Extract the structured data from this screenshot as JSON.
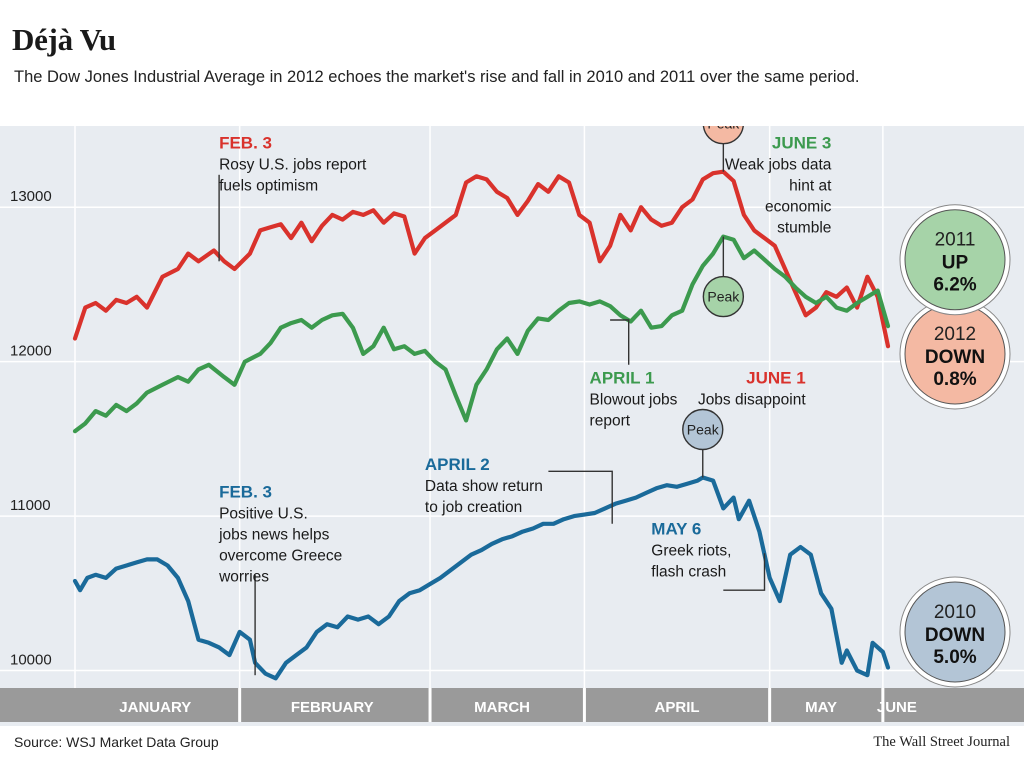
{
  "header": {
    "title": "Déjà Vu",
    "subtitle": "The Dow Jones Industrial Average in 2012 echoes the market's rise and fall in 2010 and 2011 over the same period."
  },
  "footer": {
    "source": "Source: WSJ Market Data Group",
    "credit": "The Wall Street Journal"
  },
  "chart_data": {
    "type": "line",
    "title": "Déjà Vu",
    "subtitle": "The Dow Jones Industrial Average in 2012 echoes the market's rise and fall in 2010 and 2011 over the same period.",
    "ylim": [
      9900,
      13500
    ],
    "y_ticks": [
      10000,
      11000,
      12000,
      13000
    ],
    "y_tick_labels": [
      "10000",
      "11000",
      "12000",
      "13000"
    ],
    "x_months": [
      "JANUARY",
      "FEBRUARY",
      "MARCH",
      "APRIL",
      "MAY",
      "JUNE"
    ],
    "grid": true,
    "series": [
      {
        "year": "2012",
        "color": "#d9322c",
        "badge": {
          "year": "2012",
          "direction": "DOWN",
          "change": "0.8%",
          "fill": "#f4b9a3"
        },
        "points": [
          [
            0.0,
            12150
          ],
          [
            0.1,
            12350
          ],
          [
            0.2,
            12380
          ],
          [
            0.3,
            12330
          ],
          [
            0.4,
            12400
          ],
          [
            0.5,
            12380
          ],
          [
            0.6,
            12420
          ],
          [
            0.7,
            12350
          ],
          [
            0.85,
            12550
          ],
          [
            1.0,
            12600
          ],
          [
            1.1,
            12700
          ],
          [
            1.2,
            12650
          ],
          [
            1.35,
            12720
          ],
          [
            1.45,
            12650
          ],
          [
            1.55,
            12600
          ],
          [
            1.7,
            12700
          ],
          [
            1.8,
            12850
          ],
          [
            1.9,
            12870
          ],
          [
            2.0,
            12890
          ],
          [
            2.1,
            12800
          ],
          [
            2.2,
            12900
          ],
          [
            2.3,
            12780
          ],
          [
            2.4,
            12880
          ],
          [
            2.5,
            12950
          ],
          [
            2.6,
            12920
          ],
          [
            2.7,
            12970
          ],
          [
            2.8,
            12950
          ],
          [
            2.9,
            12980
          ],
          [
            3.0,
            12900
          ],
          [
            3.1,
            12960
          ],
          [
            3.2,
            12940
          ],
          [
            3.3,
            12700
          ],
          [
            3.4,
            12800
          ],
          [
            3.5,
            12850
          ],
          [
            3.6,
            12900
          ],
          [
            3.7,
            12950
          ],
          [
            3.8,
            13160
          ],
          [
            3.9,
            13200
          ],
          [
            4.0,
            13180
          ],
          [
            4.1,
            13100
          ],
          [
            4.2,
            13060
          ],
          [
            4.3,
            12950
          ],
          [
            4.4,
            13040
          ],
          [
            4.5,
            13150
          ],
          [
            4.6,
            13100
          ],
          [
            4.7,
            13200
          ],
          [
            4.8,
            13160
          ],
          [
            4.9,
            12950
          ],
          [
            5.0,
            12900
          ],
          [
            5.1,
            12650
          ],
          [
            5.2,
            12750
          ],
          [
            5.3,
            12950
          ],
          [
            5.4,
            12850
          ],
          [
            5.5,
            13000
          ],
          [
            5.6,
            12920
          ],
          [
            5.7,
            12880
          ],
          [
            5.8,
            12900
          ],
          [
            5.9,
            13000
          ],
          [
            6.0,
            13050
          ],
          [
            6.1,
            13180
          ],
          [
            6.2,
            13220
          ],
          [
            6.3,
            13230
          ],
          [
            6.4,
            13170
          ],
          [
            6.5,
            12950
          ],
          [
            6.6,
            12850
          ],
          [
            6.7,
            12800
          ],
          [
            6.8,
            12750
          ],
          [
            6.9,
            12600
          ],
          [
            7.0,
            12450
          ],
          [
            7.1,
            12300
          ],
          [
            7.2,
            12350
          ],
          [
            7.3,
            12450
          ],
          [
            7.4,
            12420
          ],
          [
            7.5,
            12480
          ],
          [
            7.6,
            12350
          ],
          [
            7.7,
            12550
          ],
          [
            7.8,
            12420
          ],
          [
            7.9,
            12100
          ]
        ]
      },
      {
        "year": "2011",
        "color": "#3c9a4e",
        "badge": {
          "year": "2011",
          "direction": "UP",
          "change": "6.2%",
          "fill": "#a6d3a8"
        },
        "points": [
          [
            0.0,
            11550
          ],
          [
            0.1,
            11600
          ],
          [
            0.2,
            11680
          ],
          [
            0.3,
            11650
          ],
          [
            0.4,
            11720
          ],
          [
            0.5,
            11680
          ],
          [
            0.6,
            11730
          ],
          [
            0.7,
            11800
          ],
          [
            0.85,
            11850
          ],
          [
            1.0,
            11900
          ],
          [
            1.1,
            11870
          ],
          [
            1.2,
            11950
          ],
          [
            1.3,
            11980
          ],
          [
            1.45,
            11900
          ],
          [
            1.55,
            11850
          ],
          [
            1.65,
            12000
          ],
          [
            1.8,
            12050
          ],
          [
            1.9,
            12120
          ],
          [
            2.0,
            12220
          ],
          [
            2.1,
            12250
          ],
          [
            2.2,
            12270
          ],
          [
            2.3,
            12220
          ],
          [
            2.4,
            12270
          ],
          [
            2.5,
            12300
          ],
          [
            2.6,
            12310
          ],
          [
            2.7,
            12220
          ],
          [
            2.8,
            12050
          ],
          [
            2.9,
            12100
          ],
          [
            3.0,
            12220
          ],
          [
            3.1,
            12080
          ],
          [
            3.2,
            12100
          ],
          [
            3.3,
            12050
          ],
          [
            3.4,
            12070
          ],
          [
            3.5,
            12000
          ],
          [
            3.6,
            11950
          ],
          [
            3.7,
            11780
          ],
          [
            3.8,
            11620
          ],
          [
            3.9,
            11850
          ],
          [
            4.0,
            11950
          ],
          [
            4.1,
            12080
          ],
          [
            4.2,
            12150
          ],
          [
            4.3,
            12050
          ],
          [
            4.4,
            12200
          ],
          [
            4.5,
            12280
          ],
          [
            4.6,
            12270
          ],
          [
            4.7,
            12330
          ],
          [
            4.8,
            12380
          ],
          [
            4.9,
            12390
          ],
          [
            5.0,
            12370
          ],
          [
            5.1,
            12390
          ],
          [
            5.2,
            12360
          ],
          [
            5.3,
            12300
          ],
          [
            5.4,
            12260
          ],
          [
            5.5,
            12330
          ],
          [
            5.6,
            12220
          ],
          [
            5.7,
            12230
          ],
          [
            5.8,
            12300
          ],
          [
            5.9,
            12330
          ],
          [
            6.0,
            12500
          ],
          [
            6.1,
            12620
          ],
          [
            6.2,
            12700
          ],
          [
            6.3,
            12810
          ],
          [
            6.4,
            12790
          ],
          [
            6.5,
            12670
          ],
          [
            6.6,
            12720
          ],
          [
            6.7,
            12660
          ],
          [
            6.8,
            12600
          ],
          [
            6.9,
            12550
          ],
          [
            7.0,
            12480
          ],
          [
            7.1,
            12420
          ],
          [
            7.2,
            12380
          ],
          [
            7.3,
            12420
          ],
          [
            7.4,
            12350
          ],
          [
            7.5,
            12330
          ],
          [
            7.6,
            12380
          ],
          [
            7.7,
            12420
          ],
          [
            7.8,
            12460
          ],
          [
            7.9,
            12230
          ]
        ]
      },
      {
        "year": "2010",
        "color": "#1a6a9a",
        "badge": {
          "year": "2010",
          "direction": "DOWN",
          "change": "5.0%",
          "fill": "#b3c5d6"
        },
        "points": [
          [
            0.0,
            10580
          ],
          [
            0.05,
            10520
          ],
          [
            0.12,
            10600
          ],
          [
            0.2,
            10620
          ],
          [
            0.3,
            10600
          ],
          [
            0.4,
            10660
          ],
          [
            0.5,
            10680
          ],
          [
            0.6,
            10700
          ],
          [
            0.7,
            10720
          ],
          [
            0.8,
            10720
          ],
          [
            0.9,
            10680
          ],
          [
            1.0,
            10600
          ],
          [
            1.1,
            10450
          ],
          [
            1.2,
            10200
          ],
          [
            1.3,
            10180
          ],
          [
            1.4,
            10150
          ],
          [
            1.5,
            10100
          ],
          [
            1.6,
            10250
          ],
          [
            1.7,
            10200
          ],
          [
            1.75,
            10050
          ],
          [
            1.85,
            9980
          ],
          [
            1.95,
            9950
          ],
          [
            2.05,
            10050
          ],
          [
            2.15,
            10100
          ],
          [
            2.25,
            10150
          ],
          [
            2.35,
            10250
          ],
          [
            2.45,
            10300
          ],
          [
            2.55,
            10280
          ],
          [
            2.65,
            10350
          ],
          [
            2.75,
            10330
          ],
          [
            2.85,
            10350
          ],
          [
            2.95,
            10300
          ],
          [
            3.05,
            10350
          ],
          [
            3.15,
            10450
          ],
          [
            3.25,
            10500
          ],
          [
            3.35,
            10520
          ],
          [
            3.45,
            10560
          ],
          [
            3.55,
            10600
          ],
          [
            3.65,
            10650
          ],
          [
            3.75,
            10700
          ],
          [
            3.85,
            10750
          ],
          [
            3.95,
            10780
          ],
          [
            4.05,
            10820
          ],
          [
            4.15,
            10850
          ],
          [
            4.25,
            10870
          ],
          [
            4.35,
            10900
          ],
          [
            4.45,
            10920
          ],
          [
            4.55,
            10950
          ],
          [
            4.65,
            10950
          ],
          [
            4.75,
            10980
          ],
          [
            4.85,
            11000
          ],
          [
            4.95,
            11010
          ],
          [
            5.05,
            11020
          ],
          [
            5.15,
            11050
          ],
          [
            5.25,
            11080
          ],
          [
            5.35,
            11100
          ],
          [
            5.45,
            11120
          ],
          [
            5.55,
            11150
          ],
          [
            5.65,
            11180
          ],
          [
            5.75,
            11200
          ],
          [
            5.85,
            11190
          ],
          [
            5.95,
            11210
          ],
          [
            6.05,
            11230
          ],
          [
            6.1,
            11250
          ],
          [
            6.2,
            11230
          ],
          [
            6.3,
            11050
          ],
          [
            6.4,
            11120
          ],
          [
            6.45,
            10980
          ],
          [
            6.55,
            11100
          ],
          [
            6.65,
            10900
          ],
          [
            6.75,
            10600
          ],
          [
            6.85,
            10450
          ],
          [
            6.95,
            10750
          ],
          [
            7.05,
            10800
          ],
          [
            7.15,
            10750
          ],
          [
            7.25,
            10500
          ],
          [
            7.35,
            10400
          ],
          [
            7.45,
            10050
          ],
          [
            7.5,
            10130
          ],
          [
            7.6,
            10000
          ],
          [
            7.7,
            9970
          ],
          [
            7.75,
            10180
          ],
          [
            7.85,
            10120
          ],
          [
            7.9,
            10020
          ]
        ]
      }
    ],
    "peaks": [
      {
        "year": "2012",
        "label": "Peak",
        "x": 6.3,
        "value": 13230
      },
      {
        "year": "2011",
        "label": "Peak",
        "x": 6.3,
        "value": 12810
      },
      {
        "year": "2010",
        "label": "Peak",
        "x": 6.1,
        "value": 11250
      }
    ],
    "annotations": [
      {
        "series": "2012",
        "date": "FEB. 3",
        "text": [
          "Rosy U.S. jobs report",
          "fuels optimism"
        ],
        "x": 1.4,
        "value": 13380,
        "align": "left",
        "color": "#d9322c",
        "leader": [
          [
            1.4,
            13210
          ],
          [
            1.4,
            12650
          ]
        ]
      },
      {
        "series": "2011",
        "date": "JUNE 3",
        "text": [
          "Weak jobs data",
          "hint at",
          "economic",
          "stumble"
        ],
        "x": 7.35,
        "value": 13380,
        "align": "right",
        "color": "#3c9a4e",
        "leader": []
      },
      {
        "series": "2011",
        "date": "APRIL 1",
        "text": [
          "Blowout jobs",
          "report"
        ],
        "x": 5.0,
        "value": 11860,
        "align": "left",
        "color": "#3c9a4e",
        "leader": [
          [
            5.38,
            11980
          ],
          [
            5.38,
            12270
          ],
          [
            5.2,
            12270
          ]
        ]
      },
      {
        "series": "2012",
        "date": "JUNE 1",
        "text": [
          "Jobs disappoint"
        ],
        "x": 7.1,
        "value": 11860,
        "align": "right",
        "color": "#d9322c",
        "leader": []
      },
      {
        "series": "2010",
        "date": "APRIL 2",
        "text": [
          "Data show return",
          "to job creation"
        ],
        "x": 3.4,
        "value": 11300,
        "align": "left",
        "color": "#1a6a9a",
        "leader": [
          [
            4.6,
            11290
          ],
          [
            5.22,
            11290
          ],
          [
            5.22,
            10950
          ]
        ]
      },
      {
        "series": "2010",
        "date": "FEB. 3",
        "text": [
          "Positive U.S.",
          "jobs news helps",
          "overcome Greece",
          "worries"
        ],
        "x": 1.4,
        "value": 11120,
        "align": "left",
        "color": "#1a6a9a",
        "leader": [
          [
            1.75,
            10620
          ],
          [
            1.75,
            9970
          ]
        ]
      },
      {
        "series": "2010",
        "date": "MAY 6",
        "text": [
          "Greek riots,",
          "flash crash"
        ],
        "x": 5.6,
        "value": 10880,
        "align": "left",
        "color": "#1a6a9a",
        "leader": [
          [
            6.3,
            10520
          ],
          [
            6.7,
            10520
          ],
          [
            6.7,
            10760
          ]
        ]
      }
    ]
  }
}
